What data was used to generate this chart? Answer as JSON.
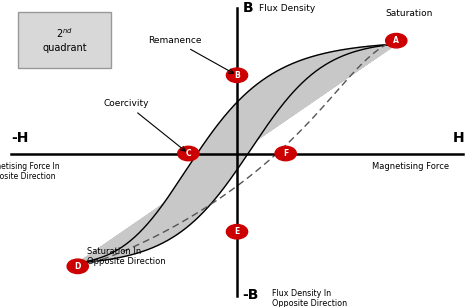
{
  "bg_color": "#ffffff",
  "loop_fill_color": "#c8c8c8",
  "point_color": "#cc0000",
  "points": {
    "A": [
      0.72,
      0.75
    ],
    "B": [
      0.0,
      0.52
    ],
    "C": [
      -0.22,
      0.0
    ],
    "D": [
      -0.72,
      -0.75
    ],
    "E": [
      0.0,
      -0.52
    ],
    "F": [
      0.22,
      0.0
    ]
  },
  "xlim": [
    -1.05,
    1.05
  ],
  "ylim": [
    -1.0,
    1.0
  ]
}
